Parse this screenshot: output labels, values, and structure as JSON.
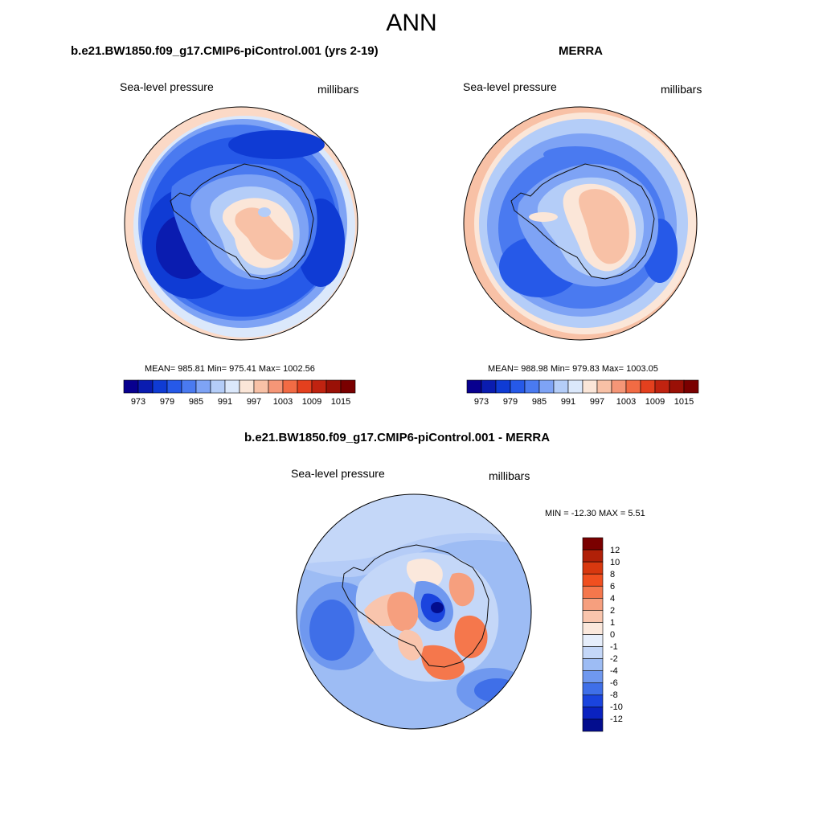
{
  "title": "ANN",
  "panels": {
    "model": {
      "title": "b.e21.BW1850.f09_g17.CMIP6-piControl.001 (yrs 2-19)",
      "variable": "Sea-level pressure",
      "units": "millibars",
      "stats": "MEAN= 985.81  Min= 975.41  Max= 1002.56"
    },
    "obs": {
      "title": "MERRA",
      "variable": "Sea-level pressure",
      "units": "millibars",
      "stats": "MEAN= 988.98  Min= 979.83  Max= 1003.05"
    },
    "diff": {
      "title": "b.e21.BW1850.f09_g17.CMIP6-piControl.001 - MERRA",
      "variable": "Sea-level pressure",
      "units": "millibars",
      "stats": "MIN = -12.30 MAX =   5.51"
    }
  },
  "colorbar_h": {
    "ticks": [
      "973",
      "979",
      "985",
      "991",
      "997",
      "1003",
      "1009",
      "1015"
    ],
    "colors": [
      "#08008f",
      "#0a1cb0",
      "#0f3bd4",
      "#2659e8",
      "#4a7af0",
      "#7ea3f5",
      "#b4cdf8",
      "#dbe8fb",
      "#fbe6d8",
      "#f8c1a6",
      "#f59677",
      "#f26b44",
      "#e4401e",
      "#c02310",
      "#9a1006",
      "#7a0000"
    ]
  },
  "colorbar_v": {
    "ticks": [
      "12",
      "10",
      "8",
      "6",
      "4",
      "2",
      "1",
      "0",
      "-1",
      "-2",
      "-4",
      "-6",
      "-8",
      "-10",
      "-12"
    ],
    "colors": [
      "#7a0000",
      "#b02008",
      "#d8380f",
      "#f04f1f",
      "#f5774c",
      "#f69f7e",
      "#f9c5ad",
      "#fbe8dc",
      "#e6eefb",
      "#c4d7f8",
      "#9dbcf4",
      "#6f98ef",
      "#3f6fe8",
      "#1a44de",
      "#0a22c0",
      "#030d8e"
    ]
  },
  "colors": {
    "ocean_deep": "#1d4fe0",
    "ocean_mid": "#4276ea",
    "ocean_light": "#8fb2f3",
    "land_warm": "#f7b99a",
    "edge_warm": "#fbd9c6"
  }
}
